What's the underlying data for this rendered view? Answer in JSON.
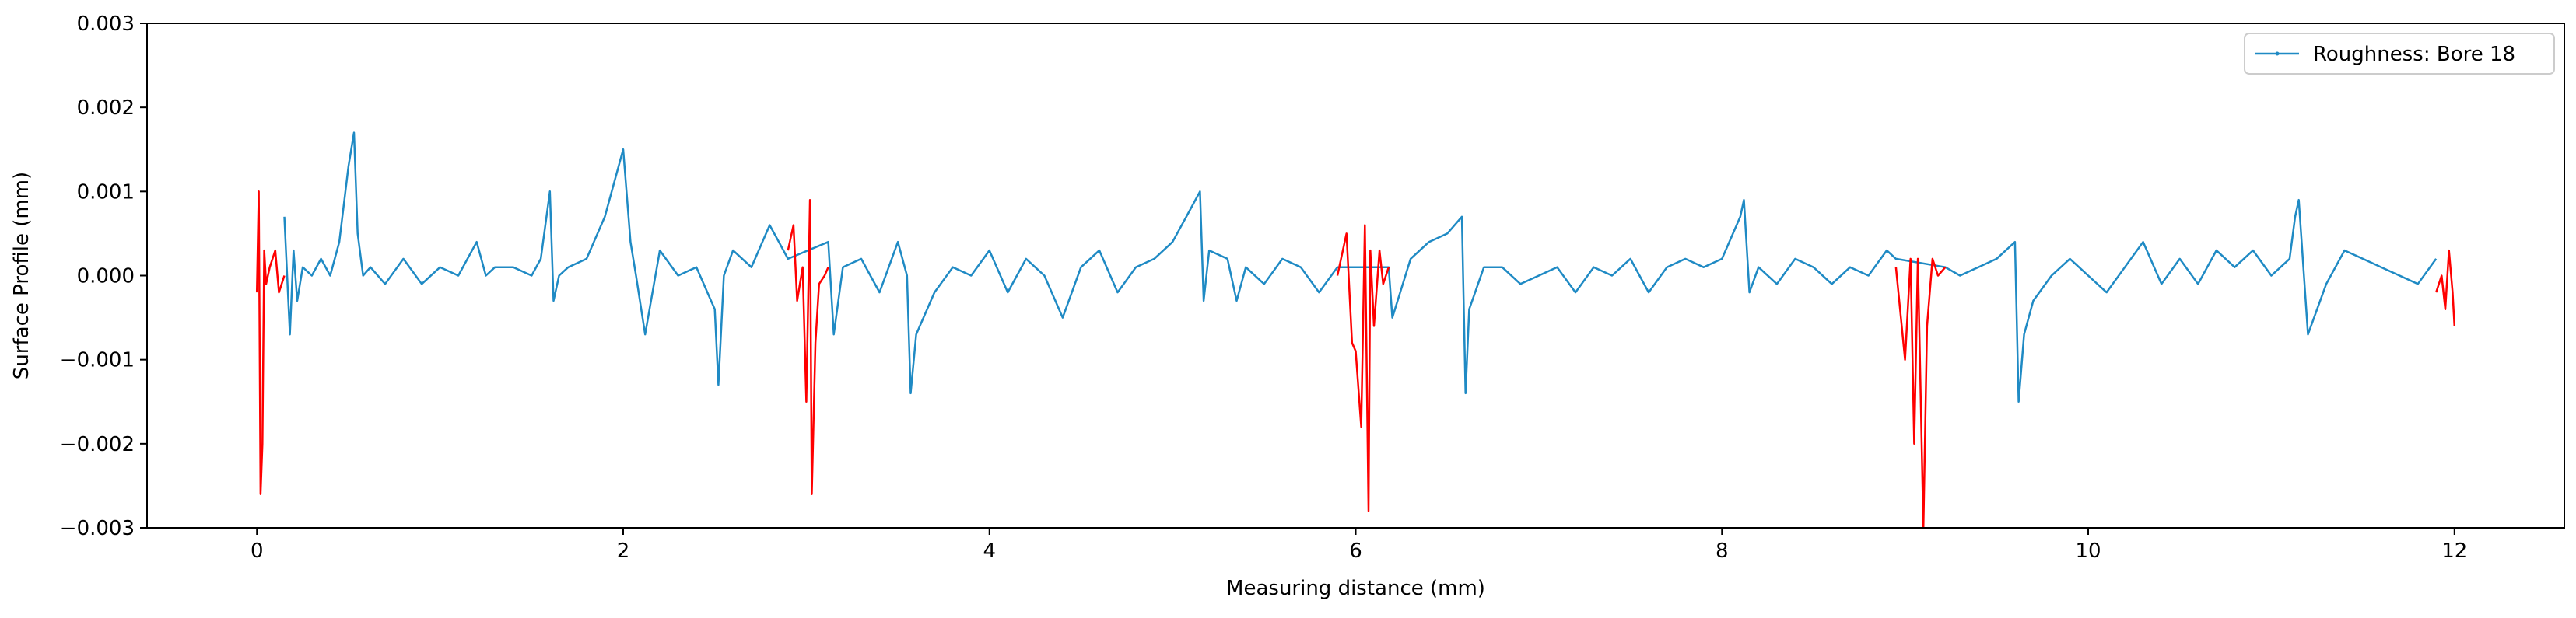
{
  "chart_data": {
    "type": "line",
    "title": "",
    "xlabel": "Measuring distance (mm)",
    "ylabel": "Surface Profile (mm)",
    "xlim": [
      -0.6,
      12.6
    ],
    "ylim": [
      -0.003,
      0.003
    ],
    "xticks": [
      0,
      2,
      4,
      6,
      8,
      10,
      12
    ],
    "xtick_labels": [
      "0",
      "2",
      "4",
      "6",
      "8",
      "10",
      "12"
    ],
    "yticks": [
      -0.003,
      -0.002,
      -0.001,
      0.0,
      0.001,
      0.002,
      0.003
    ],
    "ytick_labels": [
      "−0.003",
      "−0.002",
      "−0.001",
      "0.000",
      "0.001",
      "0.002",
      "0.003"
    ],
    "grid": false,
    "legend_position": "top-right",
    "series": [
      {
        "name": "Roughness: Bore 18",
        "color": "#1f8ac4",
        "x": [
          0.15,
          0.18,
          0.2,
          0.22,
          0.25,
          0.3,
          0.35,
          0.4,
          0.45,
          0.5,
          0.53,
          0.55,
          0.58,
          0.62,
          0.7,
          0.8,
          0.9,
          1.0,
          1.1,
          1.2,
          1.25,
          1.3,
          1.4,
          1.5,
          1.55,
          1.6,
          1.62,
          1.65,
          1.7,
          1.8,
          1.9,
          2.0,
          2.04,
          2.07,
          2.12,
          2.2,
          2.3,
          2.4,
          2.5,
          2.52,
          2.55,
          2.6,
          2.7,
          2.8,
          2.85,
          2.9,
          3.12,
          3.15,
          3.2,
          3.3,
          3.4,
          3.5,
          3.55,
          3.57,
          3.6,
          3.7,
          3.8,
          3.9,
          4.0,
          4.1,
          4.2,
          4.3,
          4.4,
          4.5,
          4.6,
          4.7,
          4.8,
          4.9,
          5.0,
          5.1,
          5.15,
          5.17,
          5.2,
          5.3,
          5.35,
          5.4,
          5.5,
          5.6,
          5.7,
          5.8,
          5.9,
          6.18,
          6.2,
          6.3,
          6.4,
          6.5,
          6.58,
          6.6,
          6.62,
          6.7,
          6.8,
          6.9,
          7.0,
          7.1,
          7.2,
          7.3,
          7.4,
          7.5,
          7.6,
          7.7,
          7.8,
          7.9,
          8.0,
          8.1,
          8.12,
          8.15,
          8.2,
          8.3,
          8.4,
          8.5,
          8.6,
          8.7,
          8.8,
          8.9,
          8.95,
          9.22,
          9.3,
          9.4,
          9.5,
          9.6,
          9.62,
          9.65,
          9.7,
          9.8,
          9.9,
          10.0,
          10.1,
          10.2,
          10.3,
          10.4,
          10.5,
          10.6,
          10.7,
          10.8,
          10.9,
          11.0,
          11.1,
          11.13,
          11.15,
          11.2,
          11.3,
          11.4,
          11.5,
          11.6,
          11.7,
          11.8,
          11.9
        ],
        "y": [
          0.0007,
          -0.0007,
          0.0003,
          -0.0003,
          0.0001,
          0.0,
          0.0002,
          0.0,
          0.0004,
          0.0013,
          0.0017,
          0.0005,
          0.0,
          0.0001,
          -0.0001,
          0.0002,
          -0.0001,
          0.0001,
          0.0,
          0.0004,
          0.0,
          0.0001,
          0.0001,
          0.0,
          0.0002,
          0.001,
          -0.0003,
          0.0,
          0.0001,
          0.0002,
          0.0007,
          0.0015,
          0.0004,
          0.0,
          -0.0007,
          0.0003,
          0.0,
          0.0001,
          -0.0004,
          -0.0013,
          0.0,
          0.0003,
          0.0001,
          0.0006,
          0.0004,
          0.0002,
          0.0004,
          -0.0007,
          0.0001,
          0.0002,
          -0.0002,
          0.0004,
          0.0,
          -0.0014,
          -0.0007,
          -0.0002,
          0.0001,
          0.0,
          0.0003,
          -0.0002,
          0.0002,
          0.0,
          -0.0005,
          0.0001,
          0.0003,
          -0.0002,
          0.0001,
          0.0002,
          0.0004,
          0.0008,
          0.001,
          -0.0003,
          0.0003,
          0.0002,
          -0.0003,
          0.0001,
          -0.0001,
          0.0002,
          0.0001,
          -0.0002,
          0.0001,
          0.0001,
          -0.0005,
          0.0002,
          0.0004,
          0.0005,
          0.0007,
          -0.0014,
          -0.0004,
          0.0001,
          0.0001,
          -0.0001,
          0.0,
          0.0001,
          -0.0002,
          0.0001,
          0.0,
          0.0002,
          -0.0002,
          0.0001,
          0.0002,
          0.0001,
          0.0002,
          0.0007,
          0.0009,
          -0.0002,
          0.0001,
          -0.0001,
          0.0002,
          0.0001,
          -0.0001,
          0.0001,
          0.0,
          0.0003,
          0.0002,
          0.0001,
          0.0,
          0.0001,
          0.0002,
          0.0004,
          -0.0015,
          -0.0007,
          -0.0003,
          0.0,
          0.0002,
          0.0,
          -0.0002,
          0.0001,
          0.0004,
          -0.0001,
          0.0002,
          -0.0001,
          0.0003,
          0.0001,
          0.0003,
          0.0,
          0.0002,
          0.0007,
          0.0009,
          -0.0007,
          -0.0001,
          0.0003,
          0.0002,
          0.0001,
          0.0,
          -0.0001,
          0.0002
        ]
      },
      {
        "name": "",
        "color": "#ff0000",
        "segments": [
          {
            "x": [
              0.0,
              0.01,
              0.02,
              0.03,
              0.04,
              0.05,
              0.07,
              0.1,
              0.12,
              0.15
            ],
            "y": [
              -0.0002,
              0.001,
              -0.0026,
              -0.002,
              0.0003,
              -0.0001,
              0.0001,
              0.0003,
              -0.0002,
              0.0
            ]
          },
          {
            "x": [
              2.9,
              2.93,
              2.95,
              2.98,
              3.0,
              3.02,
              3.03,
              3.05,
              3.07,
              3.1,
              3.12
            ],
            "y": [
              0.0003,
              0.0006,
              -0.0003,
              0.0001,
              -0.0015,
              0.0009,
              -0.0026,
              -0.0008,
              -0.0001,
              0.0,
              0.0001
            ]
          },
          {
            "x": [
              5.9,
              5.95,
              5.98,
              6.0,
              6.03,
              6.05,
              6.07,
              6.08,
              6.1,
              6.13,
              6.15,
              6.18
            ],
            "y": [
              0.0,
              0.0005,
              -0.0008,
              -0.0009,
              -0.0018,
              0.0006,
              -0.0028,
              0.0003,
              -0.0006,
              0.0003,
              -0.0001,
              0.0001
            ]
          },
          {
            "x": [
              8.95,
              9.0,
              9.03,
              9.05,
              9.07,
              9.1,
              9.12,
              9.15,
              9.18,
              9.22
            ],
            "y": [
              0.0001,
              -0.001,
              0.0002,
              -0.002,
              0.0002,
              -0.003,
              -0.0006,
              0.0002,
              0.0,
              0.0001
            ]
          },
          {
            "x": [
              11.9,
              11.93,
              11.95,
              11.97,
              11.99,
              12.0
            ],
            "y": [
              -0.0002,
              0.0,
              -0.0004,
              0.0003,
              -0.0002,
              -0.0006
            ]
          }
        ]
      }
    ]
  }
}
